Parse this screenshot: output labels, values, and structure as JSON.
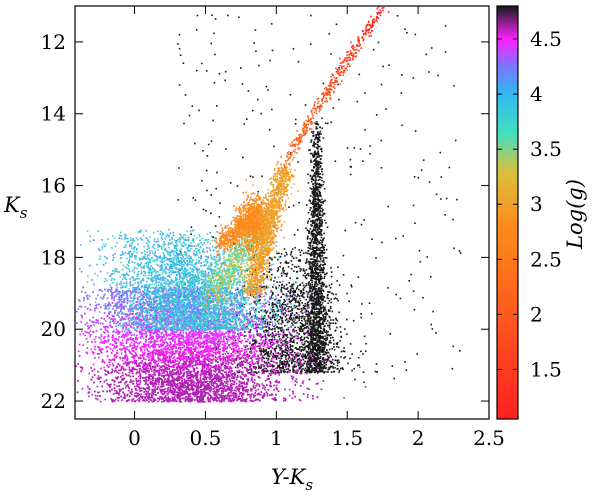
{
  "chart_data": {
    "type": "scatter",
    "title": "",
    "xlabel": "Y-K",
    "xlabel_sub": "s",
    "ylabel": "K",
    "ylabel_sub": "s",
    "xlim": [
      -0.42,
      2.5
    ],
    "ylim": [
      22.5,
      11.0
    ],
    "y_inverted": true,
    "x_ticks": [
      {
        "value": 0,
        "label": "0"
      },
      {
        "value": 0.5,
        "label": "0.5"
      },
      {
        "value": 1,
        "label": "1"
      },
      {
        "value": 1.5,
        "label": "1.5"
      },
      {
        "value": 2,
        "label": "2"
      },
      {
        "value": 2.5,
        "label": "2.5"
      }
    ],
    "y_ticks": [
      {
        "value": 12,
        "label": "12"
      },
      {
        "value": 14,
        "label": "14"
      },
      {
        "value": 16,
        "label": "16"
      },
      {
        "value": 18,
        "label": "18"
      },
      {
        "value": 20,
        "label": "20"
      },
      {
        "value": 22,
        "label": "22"
      }
    ],
    "grid": false,
    "colorbar": {
      "label": "Log(g)",
      "range": [
        1.05,
        4.8
      ],
      "ticks": [
        {
          "value": 1.5,
          "label": "1.5"
        },
        {
          "value": 2,
          "label": "2"
        },
        {
          "value": 2.5,
          "label": "2.5"
        },
        {
          "value": 3,
          "label": "3"
        },
        {
          "value": 3.5,
          "label": "3.5"
        },
        {
          "value": 4,
          "label": "4"
        },
        {
          "value": 4.5,
          "label": "4.5"
        }
      ],
      "colormap": [
        {
          "value": 1.05,
          "color": "#ff2020"
        },
        {
          "value": 2.0,
          "color": "#ff5a1e"
        },
        {
          "value": 2.8,
          "color": "#ff8c1a"
        },
        {
          "value": 3.3,
          "color": "#d8c040"
        },
        {
          "value": 3.65,
          "color": "#40e0c0"
        },
        {
          "value": 4.0,
          "color": "#30b8f0"
        },
        {
          "value": 4.25,
          "color": "#7878ff"
        },
        {
          "value": 4.5,
          "color": "#ff20ff"
        },
        {
          "value": 4.65,
          "color": "#8a2090"
        },
        {
          "value": 4.8,
          "color": "#181818"
        }
      ]
    },
    "series": [
      {
        "kind": "model-stars-colored-by-logg",
        "groups": [
          {
            "region": "main-sequence",
            "x_mean": 0.32,
            "x_sd": 0.32,
            "y_range": [
              18.8,
              22.0
            ],
            "logg": [
              4.3,
              4.6
            ]
          },
          {
            "region": "turnoff",
            "x_mean": 0.45,
            "x_sd": 0.25,
            "y_range": [
              17.2,
              20.0
            ],
            "logg": [
              3.6,
              4.2
            ]
          },
          {
            "region": "subgiant-branch",
            "x_from": 0.55,
            "x_to": 0.85,
            "y_from": 19.0,
            "y_to": 17.3,
            "logg": [
              3.2,
              3.7
            ]
          },
          {
            "region": "red-clump",
            "x_mean": 0.85,
            "y_mean": 17.0,
            "logg": [
              2.6,
              3.0
            ]
          },
          {
            "region": "rgb-lower",
            "x_from": 0.82,
            "x_to": 1.05,
            "y_from": 19.0,
            "y_to": 15.5,
            "logg": [
              2.8,
              3.2
            ]
          },
          {
            "region": "rgb-upper",
            "x_from": 1.05,
            "x_to": 1.75,
            "y_from": 15.5,
            "y_to": 11.0,
            "logg": [
              1.1,
              2.4
            ]
          },
          {
            "region": "horizontal-branch",
            "x_from": 0.6,
            "x_to": 0.85,
            "y_from": 17.6,
            "y_to": 16.8,
            "logg": [
              2.6,
              2.9
            ]
          }
        ]
      },
      {
        "kind": "dwarfs-black",
        "groups": [
          {
            "region": "dwarf-sequence",
            "x_mean": 1.28,
            "y_range": [
              14.2,
              21.2
            ],
            "logg": [
              4.8,
              4.8
            ]
          },
          {
            "region": "dwarf-halo",
            "x_mean": 1.1,
            "x_sd": 0.18,
            "y_range": [
              17.5,
              21.2
            ],
            "logg": [
              4.8,
              4.8
            ]
          },
          {
            "region": "field-scatter",
            "x_range": [
              0.3,
              2.3
            ],
            "y_range": [
              11.2,
              21.5
            ],
            "logg": [
              4.8,
              4.8
            ]
          }
        ]
      }
    ]
  }
}
